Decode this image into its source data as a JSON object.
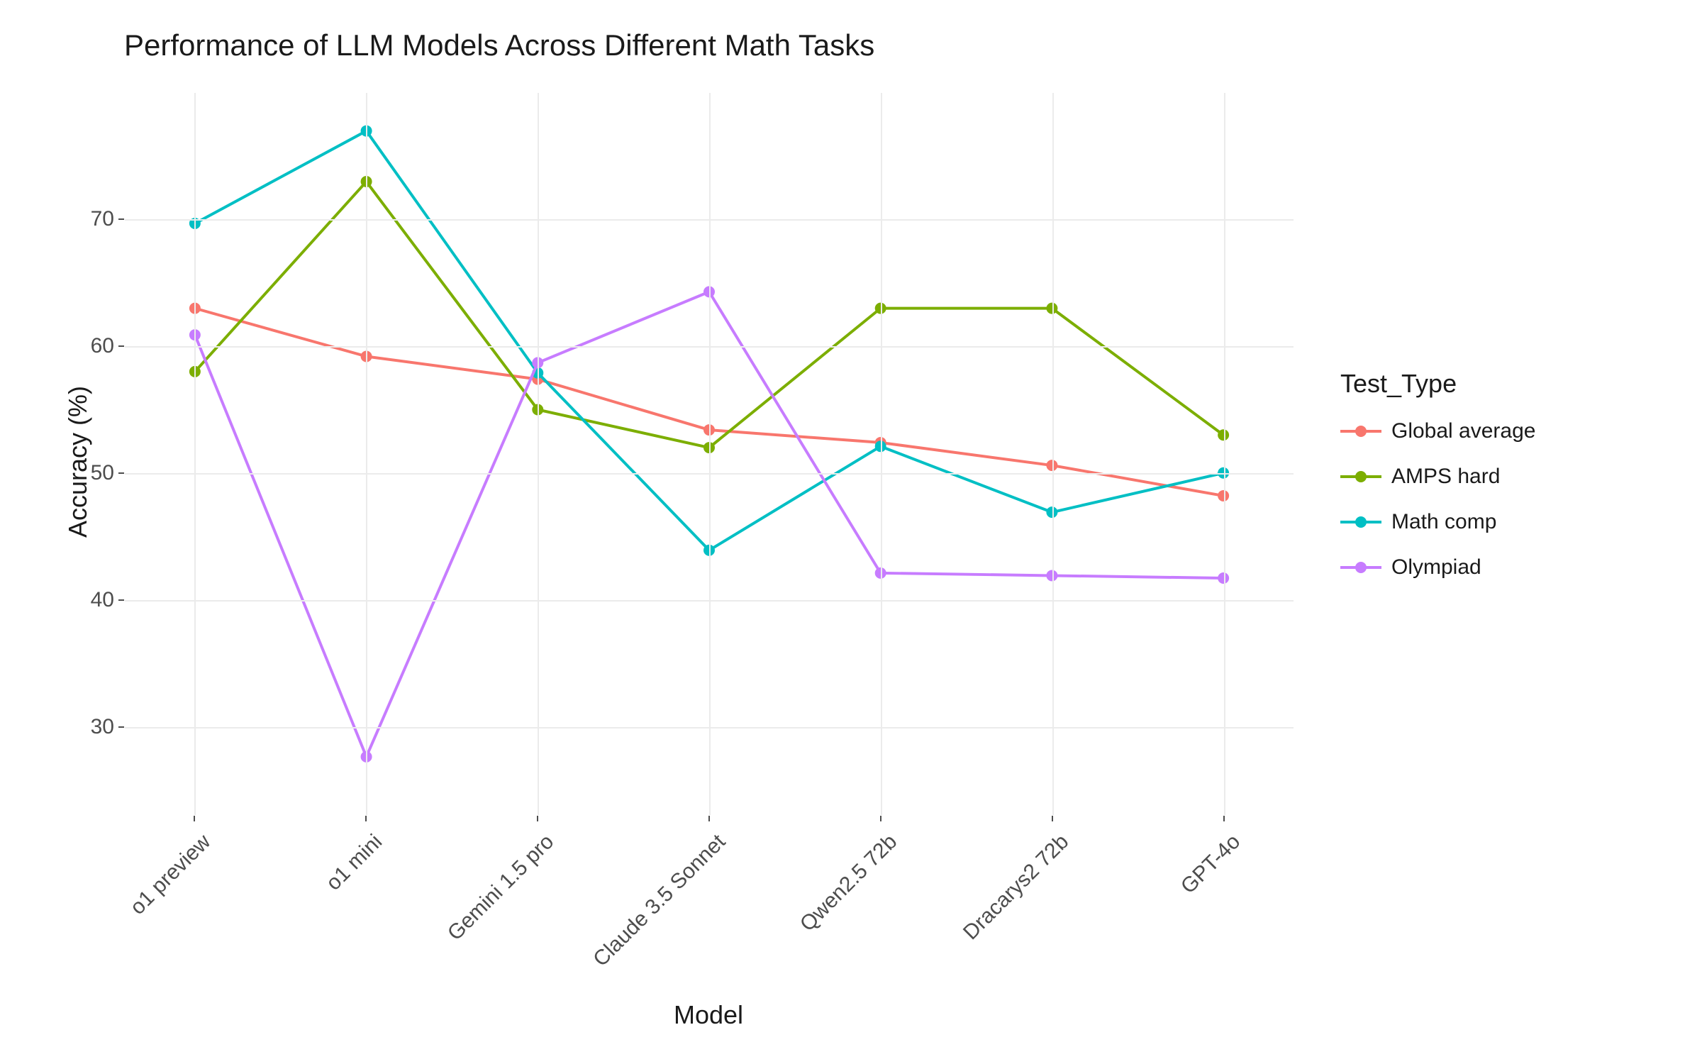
{
  "chart": {
    "type": "line",
    "title": "Performance of LLM Models Across Different Math Tasks",
    "title_fontsize": 42,
    "xlabel": "Model",
    "ylabel": "Accuracy (%)",
    "axis_label_fontsize": 36,
    "tick_label_fontsize": 30,
    "background_color": "#ffffff",
    "grid_color": "#ebebeb",
    "text_color": "#4d4d4d",
    "categories": [
      "o1 preview",
      "o1 mini",
      "Gemini 1.5 pro",
      "Claude 3.5 Sonnet",
      "Qwen2.5 72b",
      "Dracarys2 72b",
      "GPT-4o"
    ],
    "ylim": [
      23,
      80
    ],
    "yticks": [
      30,
      40,
      50,
      60,
      70
    ],
    "line_width": 4,
    "marker_size": 16,
    "marker_style": "circle",
    "x_tick_rotation": -45,
    "legend": {
      "title": "Test_Type",
      "position": "right",
      "title_fontsize": 36,
      "item_fontsize": 30
    },
    "series": [
      {
        "name": "Global average",
        "color": "#f8766d",
        "values": [
          63.0,
          59.2,
          57.4,
          53.4,
          52.4,
          50.6,
          48.2
        ]
      },
      {
        "name": "AMPS hard",
        "color": "#7cae00",
        "values": [
          58.0,
          73.0,
          55.0,
          52.0,
          63.0,
          63.0,
          53.0
        ]
      },
      {
        "name": "Math comp",
        "color": "#00bfc4",
        "values": [
          69.7,
          77.0,
          57.9,
          43.9,
          52.1,
          46.9,
          50.0
        ]
      },
      {
        "name": "Olympiad",
        "color": "#c77cff",
        "values": [
          60.9,
          27.6,
          58.7,
          64.3,
          42.1,
          41.9,
          41.7
        ]
      }
    ]
  }
}
